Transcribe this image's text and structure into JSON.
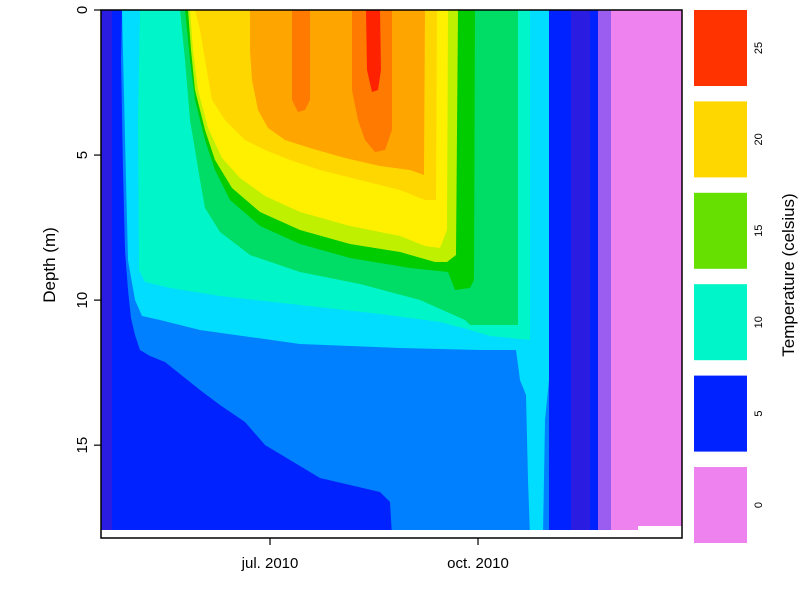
{
  "chart_data": {
    "type": "heatmap",
    "subtype": "filled-contour",
    "ylabel": "Depth (m)",
    "y_axis_reversed": true,
    "ylim": [
      0,
      18.2
    ],
    "y_ticks": [
      0,
      5,
      10,
      15
    ],
    "x_tick_labels": [
      "jul. 2010",
      "oct. 2010"
    ],
    "legend": {
      "title": "Temperature (celsius)",
      "position": "right",
      "levels": [
        {
          "label": "25",
          "range": [
            25,
            27.5
          ],
          "color": "#FF3300"
        },
        {
          "label": "20",
          "range": [
            20,
            22.5
          ],
          "color": "#FFD700"
        },
        {
          "label": "15",
          "range": [
            15,
            17.5
          ],
          "color": "#66E000"
        },
        {
          "label": "10",
          "range": [
            10,
            12.5
          ],
          "color": "#00F5C8"
        },
        {
          "label": "5",
          "range": [
            5,
            7.5
          ],
          "color": "#0022FF"
        },
        {
          "label": "0",
          "range": [
            -2.5,
            2.5
          ],
          "color": "#EE82EE"
        }
      ]
    },
    "levels": [
      {
        "range": [
          -2.5,
          0
        ],
        "color": "#EE82EE"
      },
      {
        "range": [
          0,
          2.5
        ],
        "color": "#9B5CF0"
      },
      {
        "range": [
          2.5,
          5
        ],
        "color": "#2A1CE0"
      },
      {
        "range": [
          5,
          7.5
        ],
        "color": "#0022FF"
      },
      {
        "range": [
          7.5,
          10
        ],
        "color": "#0080FF"
      },
      {
        "range": [
          10,
          11.25
        ],
        "color": "#00DDFF"
      },
      {
        "range": [
          11.25,
          12.5
        ],
        "color": "#00F5C8"
      },
      {
        "range": [
          12.5,
          13.75
        ],
        "color": "#00DD66"
      },
      {
        "range": [
          13.75,
          15
        ],
        "color": "#00CC00"
      },
      {
        "range": [
          15,
          17.5
        ],
        "color": "#BEF000"
      },
      {
        "range": [
          17.5,
          20
        ],
        "color": "#FFF000"
      },
      {
        "range": [
          20,
          22.5
        ],
        "color": "#FFD700"
      },
      {
        "range": [
          22.5,
          23.75
        ],
        "color": "#FFA500"
      },
      {
        "range": [
          23.75,
          25
        ],
        "color": "#FF7A00"
      },
      {
        "range": [
          25,
          27.5
        ],
        "color": "#FF2200"
      }
    ]
  }
}
